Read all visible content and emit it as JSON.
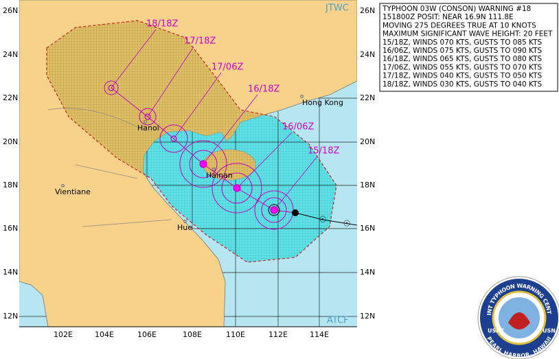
{
  "header": {
    "agency": "JTWC",
    "source": "ATCF"
  },
  "warning": {
    "lines": [
      "TYPHOON 03W (CONSON) WARNING #18",
      "151800Z POSIT: NEAR 16.9N 111.8E",
      "MOVING 275 DEGREES TRUE AT 10 KNOTS",
      "MAXIMUM SIGNIFICANT WAVE HEIGHT: 20 FEET",
      "15/18Z, WINDS 070 KTS, GUSTS TO 085 KTS",
      "16/06Z, WINDS 075 KTS, GUSTS TO 090 KTS",
      "16/18Z, WINDS 065 KTS, GUSTS TO 080 KTS",
      "17/06Z, WINDS 055 KTS, GUSTS TO 070 KTS",
      "17/18Z, WINDS 040 KTS, GUSTS TO 050 KTS",
      "18/18Z, WINDS 030 KTS, GUSTS TO 040 KTS"
    ]
  },
  "axes": {
    "lat_labels": [
      "26N",
      "24N",
      "22N",
      "20N",
      "18N",
      "16N",
      "14N",
      "12N"
    ],
    "lon_labels": [
      "102E",
      "104E",
      "106E",
      "108E",
      "110E",
      "112E",
      "114E"
    ]
  },
  "track": {
    "labels": [
      "15/18Z",
      "16/06Z",
      "16/18Z",
      "17/06Z",
      "17/18Z",
      "18/18Z"
    ]
  },
  "places": [
    "Hong Kong",
    "Hanoi",
    "Hainan",
    "Vientiane",
    "Hue"
  ],
  "logo": {
    "top": "JOINT TYPHOON WARNING CENTER",
    "bottom": "PEARL HARBOR, HAWAII",
    "left": "USAF",
    "right": "USN"
  }
}
